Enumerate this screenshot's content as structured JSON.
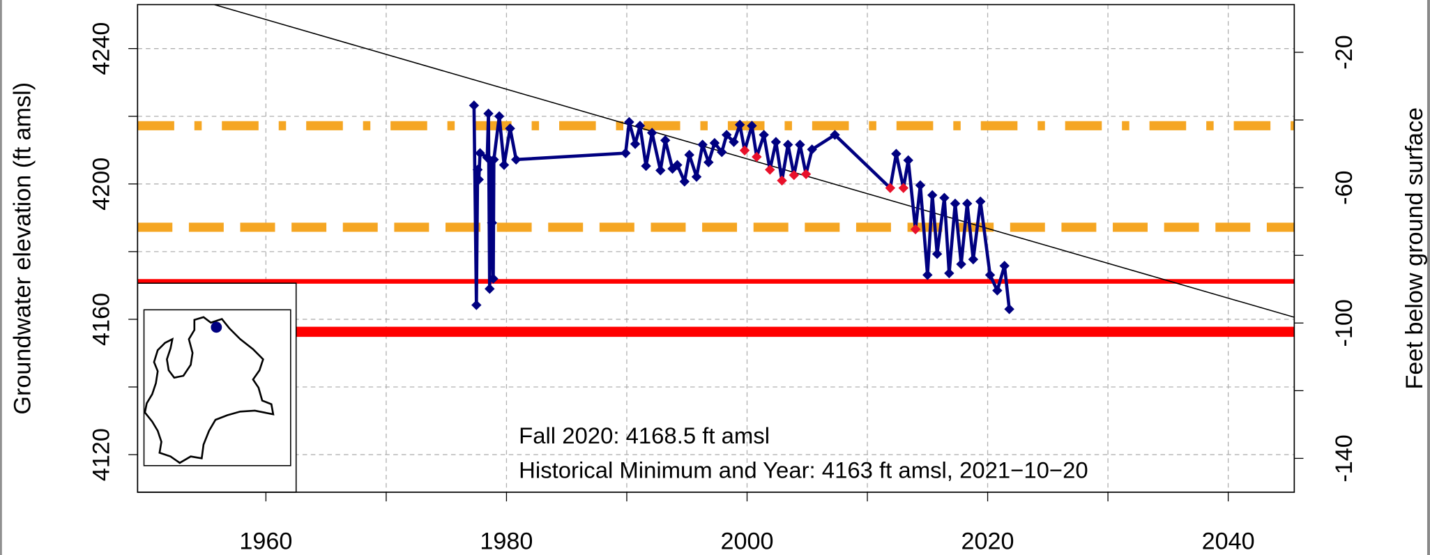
{
  "chart_data": {
    "type": "line",
    "ylabel": "Groundwater elevation (ft amsl)",
    "y2label": "Feet below ground surface",
    "xlim": [
      1949.33,
      2045.49
    ],
    "ylim": [
      4108.9,
      4253
    ],
    "y2lim": [
      -150,
      -5.9
    ],
    "xticks": [
      1960,
      1980,
      2000,
      2020,
      2040
    ],
    "xminorticks": [
      1970,
      1990,
      2010,
      2030
    ],
    "yticks": [
      4120,
      4160,
      4200,
      4240
    ],
    "yminorticks": [
      4140,
      4180,
      4220
    ],
    "y2ticks": [
      -20,
      -60,
      -100,
      -140
    ],
    "y2minorticks": [
      -40,
      -80,
      -120
    ],
    "grid": true,
    "series": [
      {
        "color": "#000080",
        "x": [
          1977.3,
          1977.5,
          1977.6,
          1977.7,
          1977.8,
          1978.4,
          1978.5,
          1978.6,
          1978.7,
          1978.8,
          1978.9,
          1978.95,
          1979.4,
          1979.8,
          1980.3,
          1980.8,
          1989.9,
          1990.2,
          1990.7,
          1991.1,
          1991.6,
          1992.1,
          1992.8,
          1993.2,
          1993.8,
          1994.2,
          1994.8,
          1995.2,
          1995.8,
          1996.3,
          1996.8,
          1997.3,
          1997.9,
          1998.3,
          1998.9,
          1999.4,
          1999.8,
          2000.4,
          2000.8,
          2001.4,
          2001.9,
          2002.4,
          2002.9,
          2003.4,
          2003.9,
          2004.4,
          2004.9,
          2005.4,
          2007.3,
          2011.9,
          2012.4,
          2013.0,
          2013.4,
          2014.0,
          2014.4,
          2015.0,
          2015.4,
          2015.8,
          2016.4,
          2016.8,
          2017.3,
          2017.8,
          2018.3,
          2018.8,
          2019.4,
          2020.2,
          2020.8,
          2021.4,
          2021.8
        ],
        "values": [
          4223.2,
          4164.2,
          4204.2,
          4201.3,
          4209.1,
          4207.8,
          4220.8,
          4169.0,
          4206.7,
          4188.5,
          4172.0,
          4207.2,
          4220.0,
          4205.6,
          4216.4,
          4207.2,
          4209.1,
          4218.3,
          4211.8,
          4217.2,
          4205.3,
          4215.1,
          4204.0,
          4212.9,
          4204.5,
          4205.6,
          4200.7,
          4208.6,
          4202.1,
          4211.6,
          4206.4,
          4212.1,
          4209.4,
          4214.5,
          4212.4,
          4217.5,
          4209.9,
          4217.2,
          4208.0,
          4214.5,
          4204.2,
          4212.4,
          4201.0,
          4211.6,
          4202.6,
          4211.6,
          4202.9,
          4210.2,
          4214.5,
          4198.8,
          4208.9,
          4198.8,
          4207.0,
          4186.6,
          4199.6,
          4173.1,
          4196.7,
          4179.3,
          4195.9,
          4173.6,
          4194.2,
          4176.3,
          4194.2,
          4177.7,
          4194.8,
          4173.1,
          4168.5,
          4175.8,
          4163.0
        ],
        "marker_colors": [
          "#000080",
          "#000080",
          "#000080",
          "#000080",
          "#000080",
          "#000080",
          "#000080",
          "#000080",
          "#000080",
          "#000080",
          "#000080",
          "#000080",
          "#000080",
          "#000080",
          "#000080",
          "#000080",
          "#000080",
          "#000080",
          "#000080",
          "#000080",
          "#000080",
          "#000080",
          "#000080",
          "#000080",
          "#000080",
          "#000080",
          "#000080",
          "#000080",
          "#000080",
          "#000080",
          "#000080",
          "#000080",
          "#000080",
          "#000080",
          "#000080",
          "#000080",
          "#e8102a",
          "#000080",
          "#e8102a",
          "#000080",
          "#e8102a",
          "#000080",
          "#e8102a",
          "#000080",
          "#e8102a",
          "#000080",
          "#e8102a",
          "#000080",
          "#000080",
          "#e8102a",
          "#000080",
          "#e8102a",
          "#000080",
          "#e8102a",
          "#000080",
          "#000080",
          "#000080",
          "#000080",
          "#000080",
          "#000080",
          "#000080",
          "#000080",
          "#000080",
          "#000080",
          "#000080",
          "#000080",
          "#000080",
          "#000080",
          "#000080"
        ]
      }
    ],
    "trend": {
      "color": "#000000",
      "x": [
        1955.7,
        2045.49
      ],
      "values": [
        4253,
        4160.6
      ]
    },
    "reference_lines": [
      {
        "value": 4217.2,
        "color": "#f5a623",
        "style": "dotdash",
        "width": 10
      },
      {
        "value": 4187.2,
        "color": "#f5a623",
        "style": "dashed",
        "width": 10
      },
      {
        "value": 4171.2,
        "color": "#ff0000",
        "style": "solid",
        "width": 5
      },
      {
        "value": 4156.3,
        "color": "#ff0000",
        "style": "solid",
        "width": 11
      }
    ],
    "annotations": [
      "Fall 2020:  4168.5 ft amsl",
      "Historical Minimum and Year:  4163 ft amsl,  2021−10−20"
    ]
  }
}
